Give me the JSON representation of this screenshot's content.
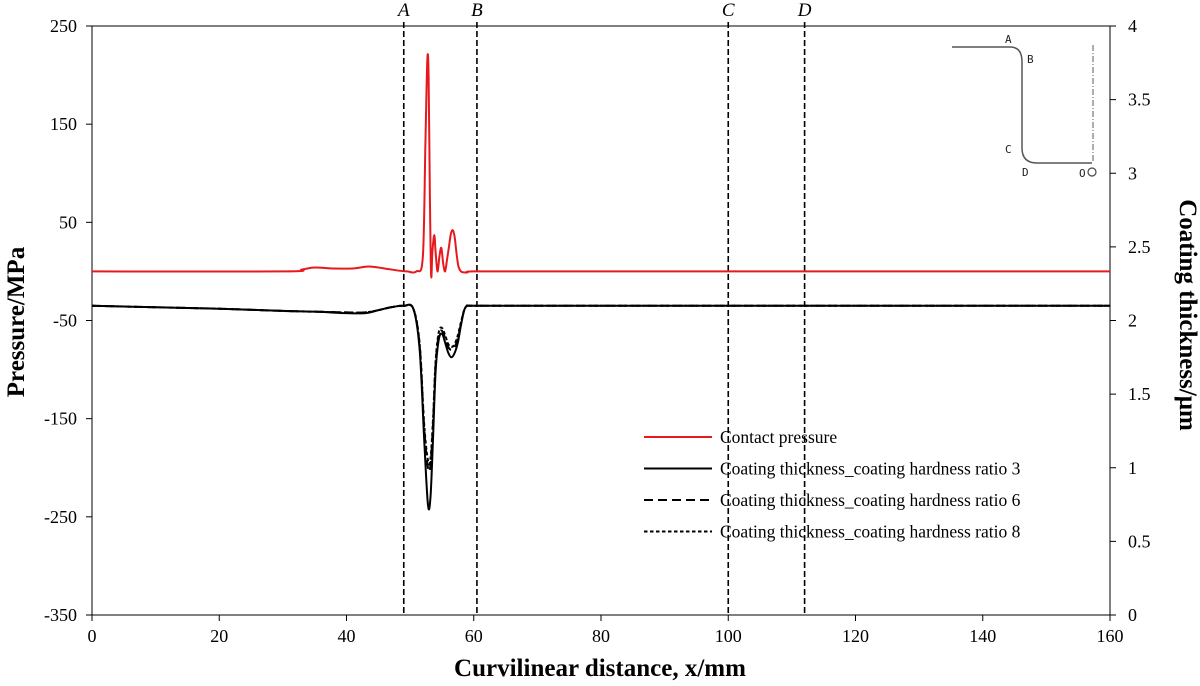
{
  "chart_data": {
    "type": "line",
    "xlabel": "Curvilinear distance, x/mm",
    "ylabel": "Pressure/MPa",
    "y2label": "Coating thickness/μm",
    "xlim": [
      0,
      160
    ],
    "ylim": [
      -350,
      250
    ],
    "y2lim": [
      0,
      4
    ],
    "xticks": [
      0,
      20,
      40,
      60,
      80,
      100,
      120,
      140,
      160
    ],
    "yticks": [
      -350,
      -250,
      -150,
      -50,
      50,
      150,
      250
    ],
    "y2ticks": [
      "0",
      "0.5",
      "1",
      "1.5",
      "2",
      "2.5",
      "3",
      "3.5",
      "4"
    ],
    "grid": false,
    "legend_position": "bottom-right",
    "markers": [
      {
        "label": "A",
        "x": 49
      },
      {
        "label": "B",
        "x": 60.5
      },
      {
        "label": "C",
        "x": 100
      },
      {
        "label": "D",
        "x": 112
      }
    ],
    "series": [
      {
        "name": "Contact pressure",
        "axis": "left",
        "color": "#e8191c",
        "dash": "solid",
        "x": [
          0,
          30,
          33,
          35,
          38,
          41,
          43.5,
          46,
          48,
          49.5,
          51,
          52,
          52.4,
          52.7,
          52.9,
          53.1,
          53.3,
          53.5,
          53.8,
          54.0,
          54.3,
          54.6,
          54.9,
          55.2,
          55.5,
          55.8,
          56.1,
          56.4,
          56.7,
          57.0,
          57.3,
          57.6,
          58.0,
          58.5,
          59,
          60,
          70,
          100,
          160
        ],
        "y": [
          0,
          0,
          2,
          4,
          3,
          3,
          5,
          3,
          1,
          0,
          0,
          15,
          130,
          215,
          200,
          80,
          -4,
          20,
          37,
          20,
          0,
          15,
          24,
          8,
          0,
          12,
          25,
          38,
          42,
          35,
          18,
          5,
          0,
          -1,
          -1,
          0,
          0,
          0,
          0
        ]
      },
      {
        "name": "Coating thickness_coating hardness ratio 3",
        "axis": "right",
        "color": "#000000",
        "dash": "solid",
        "x": [
          0,
          10,
          20,
          30,
          35,
          40,
          43,
          45,
          47,
          49,
          50.5,
          51.5,
          52.2,
          52.8,
          53.2,
          53.6,
          54.0,
          54.5,
          55.0,
          55.5,
          56.0,
          56.5,
          57.0,
          57.5,
          58.0,
          58.5,
          59.0,
          60,
          70,
          100,
          160
        ],
        "y": [
          2.1,
          2.09,
          2.08,
          2.065,
          2.06,
          2.05,
          2.05,
          2.07,
          2.09,
          2.1,
          2.08,
          1.8,
          1.2,
          0.75,
          0.8,
          1.2,
          1.65,
          1.87,
          1.91,
          1.85,
          1.78,
          1.75,
          1.78,
          1.85,
          1.97,
          2.07,
          2.1,
          2.1,
          2.1,
          2.1,
          2.1
        ]
      },
      {
        "name": "Coating thickness_coating hardness ratio 6",
        "axis": "right",
        "color": "#000000",
        "dash": "long-dash",
        "x": [
          0,
          10,
          20,
          30,
          35,
          40,
          43,
          45,
          47,
          49,
          50.5,
          51.5,
          52.2,
          52.8,
          53.2,
          53.6,
          54.0,
          54.5,
          55.0,
          55.5,
          56.0,
          56.5,
          57.0,
          57.5,
          58.0,
          58.5,
          59.0,
          60,
          70,
          100,
          160
        ],
        "y": [
          2.1,
          2.09,
          2.08,
          2.065,
          2.06,
          2.055,
          2.055,
          2.07,
          2.09,
          2.1,
          2.08,
          1.83,
          1.28,
          1.0,
          1.02,
          1.3,
          1.7,
          1.9,
          1.93,
          1.88,
          1.82,
          1.8,
          1.82,
          1.88,
          1.98,
          2.07,
          2.1,
          2.1,
          2.1,
          2.1,
          2.1
        ]
      },
      {
        "name": "Coating thickness_coating hardness ratio 8",
        "axis": "right",
        "color": "#000000",
        "dash": "short-dash",
        "x": [
          0,
          10,
          20,
          30,
          35,
          40,
          43,
          45,
          47,
          49,
          50.5,
          51.5,
          52.2,
          52.8,
          53.2,
          53.6,
          54.0,
          54.5,
          55.0,
          55.5,
          56.0,
          56.5,
          57.0,
          57.5,
          58.0,
          58.5,
          59.0,
          60,
          70,
          100,
          160
        ],
        "y": [
          2.1,
          2.09,
          2.08,
          2.065,
          2.06,
          2.055,
          2.055,
          2.07,
          2.09,
          2.1,
          2.08,
          1.84,
          1.3,
          1.05,
          1.06,
          1.33,
          1.72,
          1.92,
          1.95,
          1.9,
          1.84,
          1.82,
          1.84,
          1.9,
          1.99,
          2.07,
          2.1,
          2.1,
          2.1,
          2.1,
          2.1
        ]
      }
    ],
    "inset": {
      "labels": [
        "A",
        "B",
        "C",
        "D",
        "O"
      ]
    }
  }
}
